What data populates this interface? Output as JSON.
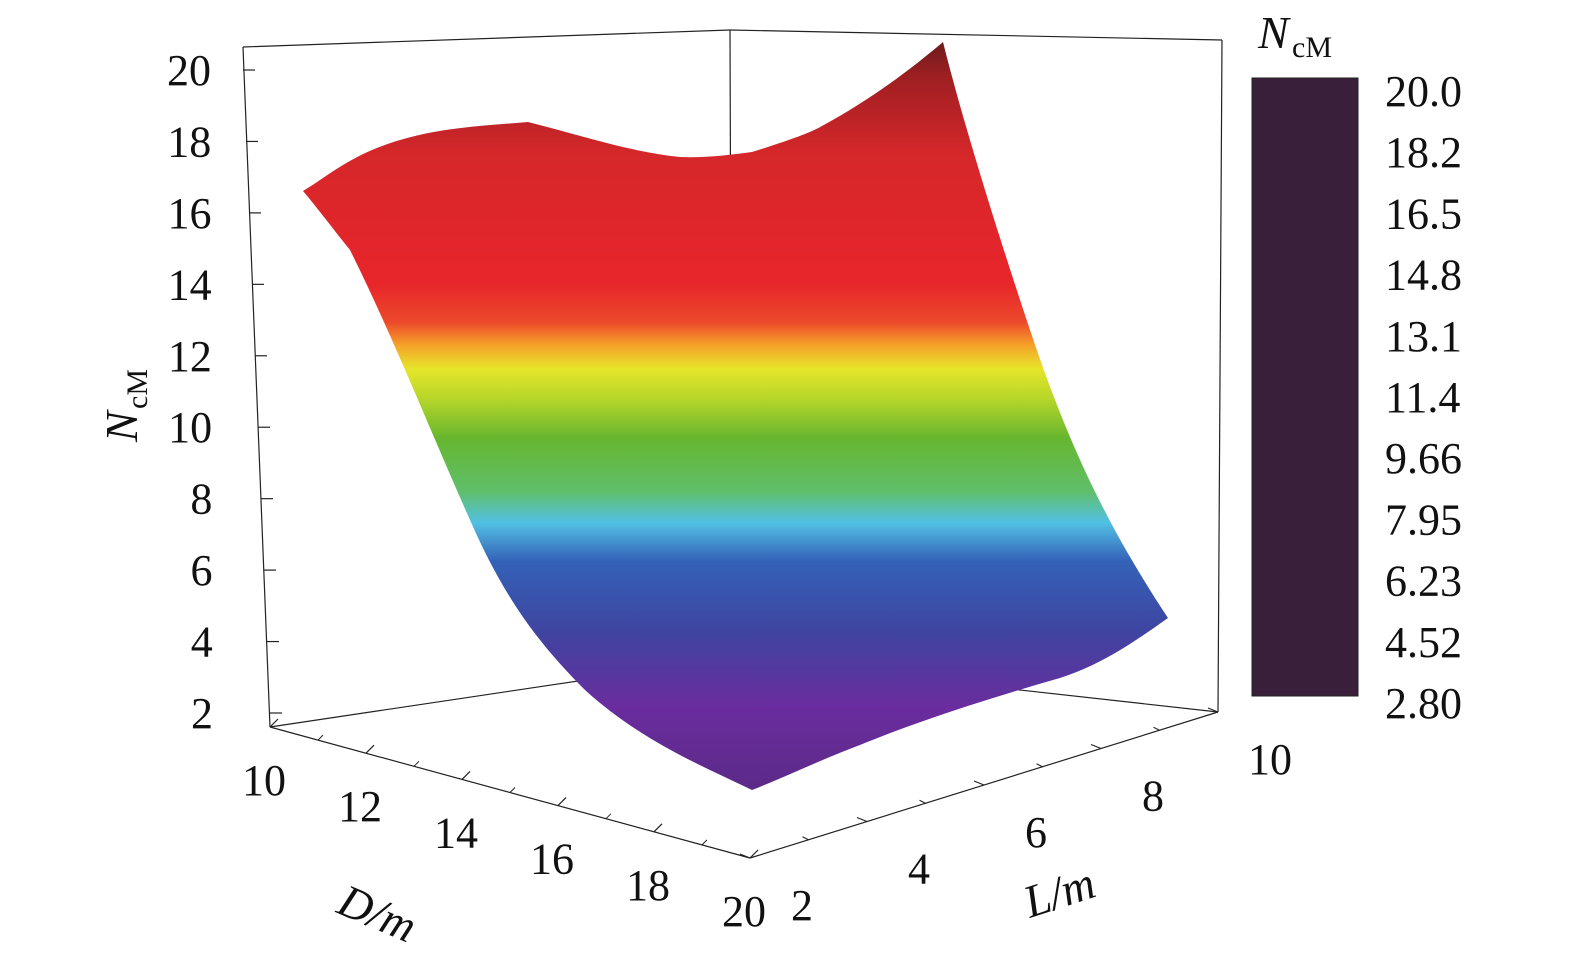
{
  "chart_data": {
    "type": "surface3d",
    "title": "",
    "z_axis": {
      "label_main": "N",
      "label_sub": "cM",
      "ticks": [
        2,
        4,
        6,
        8,
        10,
        12,
        14,
        16,
        18,
        20
      ],
      "range": [
        1.5,
        20.5
      ]
    },
    "x_axis": {
      "label": "D/m",
      "ticks": [
        10,
        12,
        14,
        16,
        18,
        20
      ],
      "range": [
        10,
        20
      ]
    },
    "y_axis": {
      "label": "L/m",
      "ticks": [
        2,
        4,
        6,
        8,
        10
      ],
      "range": [
        2,
        10
      ]
    },
    "surface": {
      "D": [
        10,
        12,
        14,
        16,
        18,
        20
      ],
      "L": [
        2,
        4,
        6,
        8,
        10
      ],
      "N_by_L_at_D10": [
        16.6,
        17.3,
        18.1,
        18.5,
        18.4
      ],
      "N_by_L_at_D20": [
        3.0,
        3.7,
        4.4,
        4.8,
        5.2
      ],
      "N_by_D_at_L2": [
        16.6,
        11.5,
        6.9,
        4.6,
        3.4,
        3.0
      ],
      "N_by_D_at_L10": [
        18.4,
        14.2,
        10.5,
        8.4,
        6.9,
        5.2
      ]
    },
    "colorbar": {
      "title_main": "N",
      "title_sub": "cM",
      "tick_labels": [
        "20.0",
        "18.2",
        "16.5",
        "14.8",
        "13.1",
        "11.4",
        "9.66",
        "7.95",
        "6.23",
        "4.52",
        "2.80"
      ],
      "range": [
        2.8,
        20.0
      ]
    },
    "colormap": [
      {
        "v": 2.8,
        "c": "#3a1f3a"
      },
      {
        "v": 3.1,
        "c": "#5a2a85"
      },
      {
        "v": 4.4,
        "c": "#6a2c9e"
      },
      {
        "v": 5.3,
        "c": "#3e45a0"
      },
      {
        "v": 6.3,
        "c": "#3461b8"
      },
      {
        "v": 7.3,
        "c": "#52c0e4"
      },
      {
        "v": 8.3,
        "c": "#5fbf6c"
      },
      {
        "v": 9.7,
        "c": "#66b62e"
      },
      {
        "v": 11.0,
        "c": "#b5d62a"
      },
      {
        "v": 11.8,
        "c": "#e6e52a"
      },
      {
        "v": 12.9,
        "c": "#f6a429"
      },
      {
        "v": 14.2,
        "c": "#ec3a2b"
      },
      {
        "v": 16.5,
        "c": "#e8262b"
      },
      {
        "v": 18.2,
        "c": "#bd2225"
      },
      {
        "v": 20.0,
        "c": "#5a1a1c"
      }
    ]
  }
}
